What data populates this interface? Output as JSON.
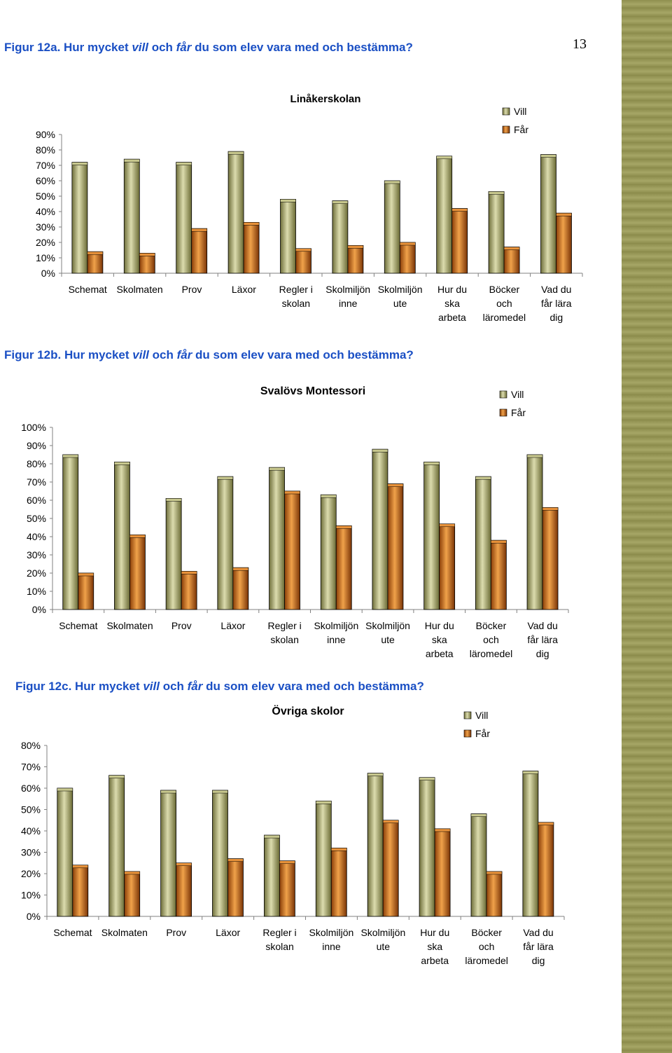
{
  "page": {
    "number": "13"
  },
  "figures": [
    {
      "caption": {
        "prefix": "Figur 12a. Hur mycket ",
        "w1": "vill",
        "mid1": " och ",
        "w2": "får",
        "suffix": " du som elev vara med och bestämma?"
      }
    },
    {
      "caption": {
        "prefix": "Figur 12b. Hur mycket ",
        "w1": "vill",
        "mid1": " och ",
        "w2": "får",
        "suffix": " du som elev vara med och bestämma?"
      }
    },
    {
      "caption": {
        "prefix": "Figur 12c. Hur mycket ",
        "w1": "vill",
        "mid1": " och ",
        "w2": "får",
        "suffix": " du som elev vara med och bestämma?"
      }
    }
  ],
  "colors": {
    "vill": "#a0a062",
    "far": "#d4701c",
    "axis": "#808080"
  },
  "chart_data": [
    {
      "type": "bar",
      "title": "Linåkerskolan",
      "categories": [
        [
          "Schemat"
        ],
        [
          "Skolmaten"
        ],
        [
          "Prov"
        ],
        [
          "Läxor"
        ],
        [
          "Regler i",
          "skolan"
        ],
        [
          "Skolmiljön",
          "inne"
        ],
        [
          "Skolmiljön",
          "ute"
        ],
        [
          "Hur du",
          "ska",
          "arbeta"
        ],
        [
          "Böcker",
          "och",
          "läromedel"
        ],
        [
          "Vad du",
          "får lära",
          "dig"
        ]
      ],
      "series": [
        {
          "name": "Vill",
          "values": [
            72,
            74,
            72,
            79,
            48,
            47,
            60,
            76,
            53,
            77
          ]
        },
        {
          "name": "Får",
          "values": [
            14,
            13,
            29,
            33,
            16,
            18,
            20,
            42,
            17,
            39
          ]
        }
      ],
      "ylim": [
        0,
        90
      ],
      "yticks": [
        "0%",
        "10%",
        "20%",
        "30%",
        "40%",
        "50%",
        "60%",
        "70%",
        "80%",
        "90%"
      ],
      "legend_position": "top-right"
    },
    {
      "type": "bar",
      "title": "Svalövs Montessori",
      "categories": [
        [
          "Schemat"
        ],
        [
          "Skolmaten"
        ],
        [
          "Prov"
        ],
        [
          "Läxor"
        ],
        [
          "Regler i",
          "skolan"
        ],
        [
          "Skolmiljön",
          "inne"
        ],
        [
          "Skolmiljön",
          "ute"
        ],
        [
          "Hur du",
          "ska",
          "arbeta"
        ],
        [
          "Böcker",
          "och",
          "läromedel"
        ],
        [
          "Vad du",
          "får lära",
          "dig"
        ]
      ],
      "series": [
        {
          "name": "Vill",
          "values": [
            85,
            81,
            61,
            73,
            78,
            63,
            88,
            81,
            73,
            85
          ]
        },
        {
          "name": "Får",
          "values": [
            20,
            41,
            21,
            23,
            65,
            46,
            69,
            47,
            38,
            56
          ]
        }
      ],
      "ylim": [
        0,
        100
      ],
      "yticks": [
        "0%",
        "10%",
        "20%",
        "30%",
        "40%",
        "50%",
        "60%",
        "70%",
        "80%",
        "90%",
        "100%"
      ],
      "legend_position": "top-right"
    },
    {
      "type": "bar",
      "title": "Övriga skolor",
      "categories": [
        [
          "Schemat"
        ],
        [
          "Skolmaten"
        ],
        [
          "Prov"
        ],
        [
          "Läxor"
        ],
        [
          "Regler i",
          "skolan"
        ],
        [
          "Skolmiljön",
          "inne"
        ],
        [
          "Skolmiljön",
          "ute"
        ],
        [
          "Hur du",
          "ska",
          "arbeta"
        ],
        [
          "Böcker",
          "och",
          "läromedel"
        ],
        [
          "Vad du",
          "får lära",
          "dig"
        ]
      ],
      "series": [
        {
          "name": "Vill",
          "values": [
            60,
            66,
            59,
            59,
            38,
            54,
            67,
            65,
            48,
            68
          ]
        },
        {
          "name": "Får",
          "values": [
            24,
            21,
            25,
            27,
            26,
            32,
            45,
            41,
            21,
            44
          ]
        }
      ],
      "ylim": [
        0,
        80
      ],
      "yticks": [
        "0%",
        "10%",
        "20%",
        "30%",
        "40%",
        "50%",
        "60%",
        "70%",
        "80%"
      ],
      "legend_position": "top-right"
    }
  ]
}
